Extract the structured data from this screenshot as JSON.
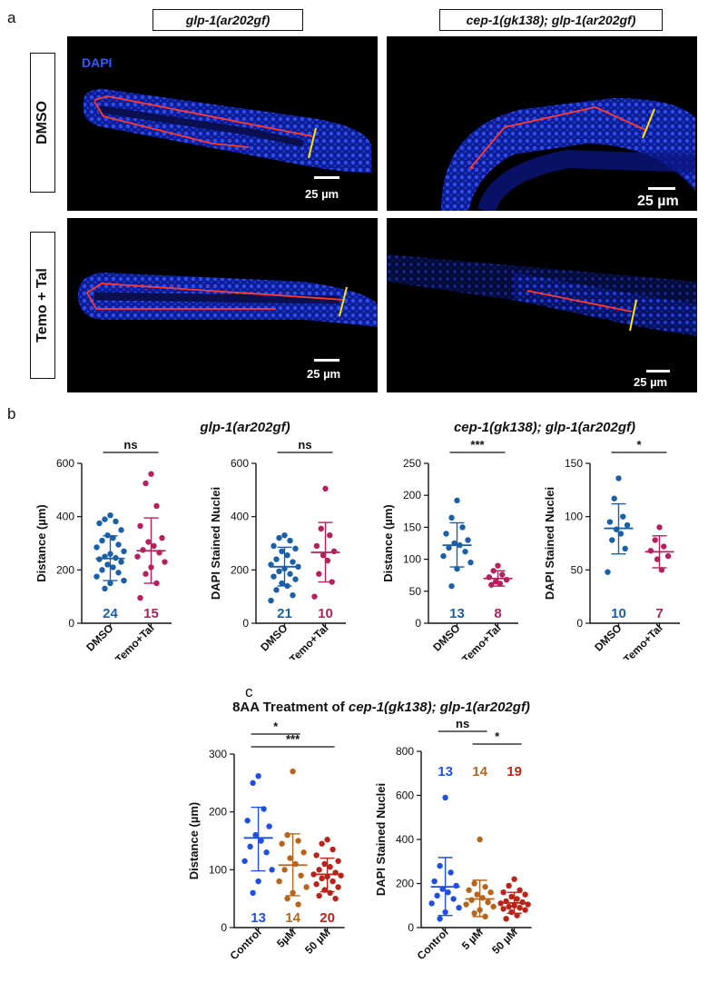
{
  "panel_labels": {
    "a": "a",
    "b": "b",
    "c": "c"
  },
  "panel_a": {
    "col_headers": [
      "glp-1(ar202gf)",
      "cep-1(gk138); glp-1(ar202gf)"
    ],
    "row_headers": [
      "DMSO",
      "Temo + Tal"
    ],
    "stain_label": "DAPI",
    "scale_bar_label": "25 µm",
    "colors": {
      "nuclei": "#1f3fe0",
      "trace": "#ff3b30",
      "boundary": "#ffe600"
    }
  },
  "panel_b": {
    "titles": [
      {
        "italic": "glp-1(ar202gf)"
      },
      {
        "italic": "cep-1(gk138); glp-1(ar202gf)"
      }
    ]
  },
  "panel_c": {
    "title_prefix": "8AA Treatment of ",
    "title_italic": "cep-1(gk138); glp-1(ar202gf)"
  },
  "chart_data": [
    {
      "type": "scatter",
      "id": "b1",
      "ylabel": "Distance (µm)",
      "ylim": [
        0,
        600
      ],
      "yticks": [
        0,
        200,
        400,
        600
      ],
      "categories": [
        "DMSO",
        "Temo+Tal"
      ],
      "colors": [
        "#1a5fa8",
        "#b5205e"
      ],
      "counts": [
        "24",
        "15"
      ],
      "significance": [
        {
          "text": "ns",
          "from": 0,
          "to": 1
        }
      ],
      "means": [
        243,
        272
      ],
      "sd": [
        [
          160,
          328
        ],
        [
          150,
          395
        ]
      ],
      "series": [
        {
          "values": [
            405,
            390,
            382,
            375,
            350,
            330,
            320,
            310,
            295,
            285,
            270,
            260,
            250,
            245,
            240,
            230,
            220,
            210,
            200,
            190,
            175,
            160,
            150,
            130
          ]
        },
        {
          "values": [
            560,
            525,
            440,
            365,
            320,
            305,
            290,
            275,
            265,
            250,
            230,
            210,
            185,
            150,
            95
          ]
        }
      ]
    },
    {
      "type": "scatter",
      "id": "b2",
      "ylabel": "DAPI Stained Nuclei",
      "ylim": [
        0,
        600
      ],
      "yticks": [
        0,
        200,
        400,
        600
      ],
      "categories": [
        "DMSO",
        "Temo+Tal"
      ],
      "colors": [
        "#1a5fa8",
        "#b5205e"
      ],
      "counts": [
        "21",
        "10"
      ],
      "significance": [
        {
          "text": "ns",
          "from": 0,
          "to": 1
        }
      ],
      "means": [
        212,
        266
      ],
      "sd": [
        [
          140,
          285
        ],
        [
          155,
          378
        ]
      ],
      "series": [
        {
          "values": [
            330,
            320,
            310,
            290,
            280,
            270,
            255,
            240,
            230,
            220,
            212,
            205,
            195,
            185,
            175,
            165,
            150,
            140,
            125,
            105,
            85
          ]
        },
        {
          "values": [
            505,
            355,
            330,
            290,
            270,
            255,
            235,
            185,
            155,
            100
          ]
        }
      ]
    },
    {
      "type": "scatter",
      "id": "b3",
      "ylabel": "Distance (µm)",
      "ylim": [
        0,
        250
      ],
      "yticks": [
        0,
        50,
        100,
        150,
        200,
        250
      ],
      "categories": [
        "DMSO",
        "Temo+Tal"
      ],
      "colors": [
        "#1a5fa8",
        "#b5205e"
      ],
      "counts": [
        "13",
        "8"
      ],
      "significance": [
        {
          "text": "***",
          "from": 0,
          "to": 1
        }
      ],
      "means": [
        122,
        70
      ],
      "sd": [
        [
          88,
          157
        ],
        [
          58,
          82
        ]
      ],
      "series": [
        {
          "values": [
            192,
            165,
            150,
            140,
            130,
            125,
            122,
            118,
            112,
            105,
            95,
            85,
            58
          ]
        },
        {
          "values": [
            90,
            82,
            76,
            72,
            68,
            65,
            62,
            60
          ]
        }
      ]
    },
    {
      "type": "scatter",
      "id": "b4",
      "ylabel": "DAPI Stained Nuclei",
      "ylim": [
        0,
        150
      ],
      "yticks": [
        0,
        50,
        100,
        150
      ],
      "categories": [
        "DMSO",
        "Temo+Tal"
      ],
      "colors": [
        "#1a5fa8",
        "#b5205e"
      ],
      "counts": [
        "10",
        "7"
      ],
      "significance": [
        {
          "text": "*",
          "from": 0,
          "to": 1
        }
      ],
      "means": [
        89,
        67
      ],
      "sd": [
        [
          65,
          112
        ],
        [
          52,
          82
        ]
      ],
      "series": [
        {
          "values": [
            136,
            117,
            100,
            95,
            92,
            88,
            84,
            78,
            70,
            48
          ]
        },
        {
          "values": [
            90,
            78,
            72,
            68,
            63,
            60,
            50
          ]
        }
      ]
    },
    {
      "type": "scatter",
      "id": "c1",
      "ylabel": "Distance (µm)",
      "ylim": [
        0,
        300
      ],
      "yticks": [
        0,
        100,
        200,
        300
      ],
      "categories": [
        "Control",
        "5µM",
        "50 µM"
      ],
      "colors": [
        "#1f4fe0",
        "#b5651d",
        "#b8231a"
      ],
      "counts": [
        "13",
        "14",
        "20"
      ],
      "significance": [
        {
          "text": "*",
          "from": 0,
          "to": 1
        },
        {
          "text": "***",
          "from": 0,
          "to": 2
        }
      ],
      "means": [
        155,
        108,
        92
      ],
      "sd": [
        [
          98,
          208
        ],
        [
          55,
          162
        ],
        [
          62,
          120
        ]
      ],
      "series": [
        {
          "values": [
            262,
            250,
            205,
            185,
            175,
            160,
            150,
            140,
            130,
            115,
            100,
            80,
            60
          ]
        },
        {
          "values": [
            270,
            160,
            150,
            145,
            130,
            120,
            110,
            100,
            90,
            80,
            70,
            60,
            50,
            40
          ]
        },
        {
          "values": [
            152,
            145,
            135,
            125,
            115,
            110,
            105,
            100,
            95,
            92,
            90,
            88,
            85,
            80,
            75,
            70,
            65,
            60,
            55,
            50
          ]
        }
      ]
    },
    {
      "type": "scatter",
      "id": "c2",
      "ylabel": "DAPI Stained Nuclei",
      "ylim": [
        0,
        800
      ],
      "yticks": [
        0,
        200,
        400,
        600,
        800
      ],
      "categories": [
        "Control",
        "5 µM",
        "50 µM"
      ],
      "colors": [
        "#1f4fe0",
        "#b5651d",
        "#b8231a"
      ],
      "counts": [
        "13",
        "14",
        "19"
      ],
      "count_position": "top",
      "significance": [
        {
          "text": "ns",
          "from": 0,
          "to": 1
        },
        {
          "text": "*",
          "from": 1,
          "to": 2
        }
      ],
      "means": [
        185,
        130,
        112
      ],
      "sd": [
        [
          55,
          318
        ],
        [
          50,
          215
        ],
        [
          65,
          160
        ]
      ],
      "series": [
        {
          "values": [
            590,
            280,
            250,
            210,
            190,
            175,
            160,
            145,
            130,
            110,
            90,
            70,
            40
          ]
        },
        {
          "values": [
            400,
            200,
            185,
            170,
            160,
            150,
            135,
            125,
            115,
            105,
            95,
            80,
            65,
            50
          ]
        },
        {
          "values": [
            220,
            190,
            170,
            160,
            150,
            140,
            130,
            120,
            115,
            110,
            105,
            100,
            95,
            90,
            85,
            80,
            70,
            55,
            40
          ]
        }
      ]
    }
  ]
}
